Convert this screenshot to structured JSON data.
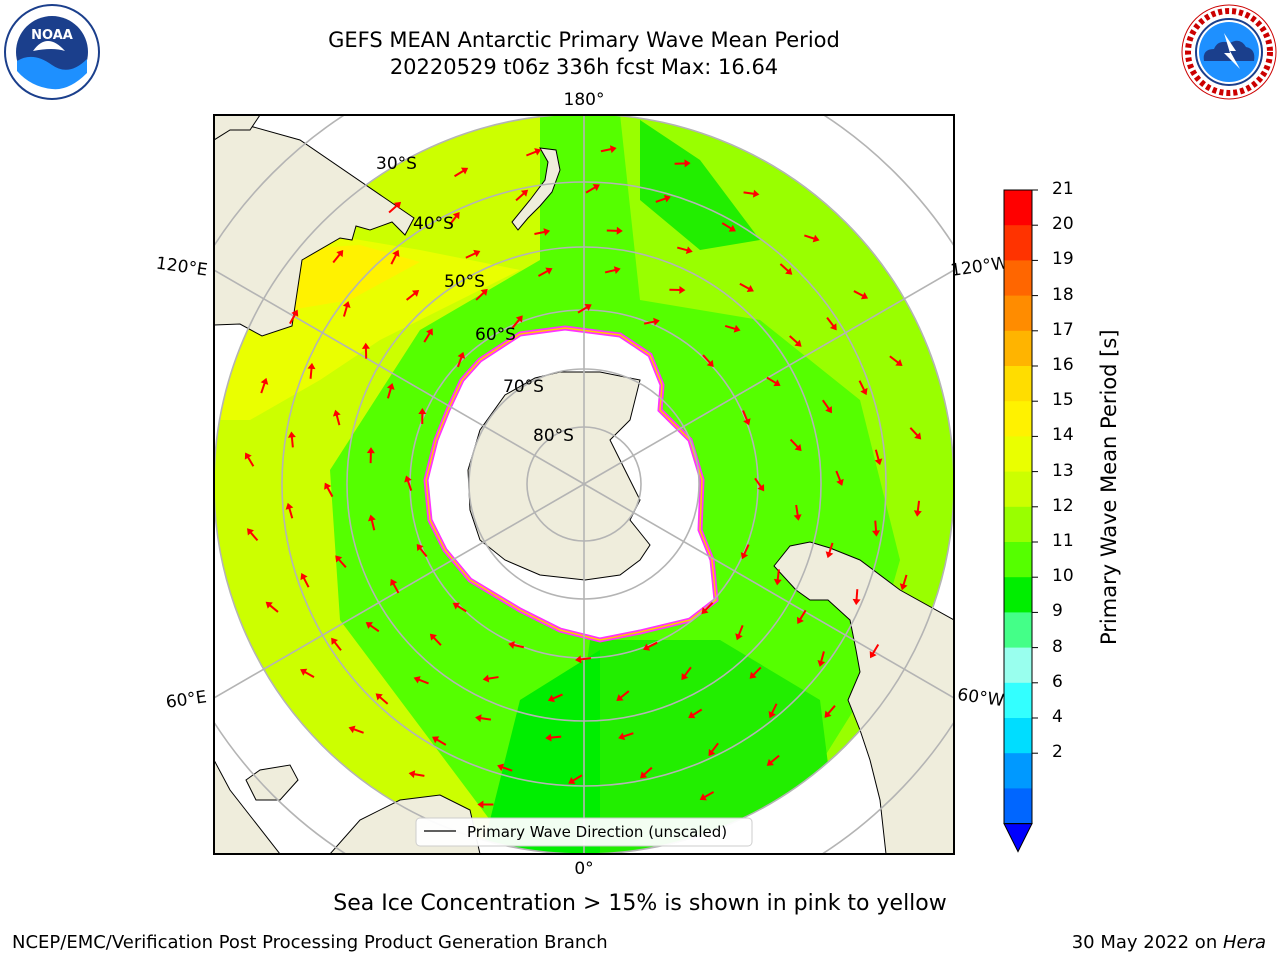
{
  "title_line1": "GEFS MEAN Antarctic Primary Wave Mean Period",
  "title_line2": "20220529 t06z 336h fcst   Max: 16.64",
  "caption": "Sea Ice Concentration > 15% is shown in pink to yellow",
  "footer_left": "NCEP/EMC/Verification Post Processing Product Generation Branch",
  "footer_right_date": "30 May 2022 on ",
  "footer_right_machine": "Hera",
  "logos": {
    "left_text": "NOAA",
    "right_text": "NATIONAL WEATHER SERVICE"
  },
  "map": {
    "projection": "south-polar-stereographic",
    "longitude_labels": [
      "180°",
      "120°E",
      "120°W",
      "60°E",
      "60°W",
      "0°"
    ],
    "latitude_labels": [
      "30°S",
      "40°S",
      "50°S",
      "60°S",
      "70°S",
      "80°S"
    ],
    "legend_label": "Primary Wave Direction (unscaled)",
    "colors": {
      "land": "#efeddc",
      "sea_ice": "#ffffff",
      "ice_edge": "#ff33ff",
      "arrows": "#ff0000"
    }
  },
  "colorbar": {
    "label": "Primary Wave Mean Period [s]",
    "ticks": [
      "21",
      "20",
      "19",
      "18",
      "17",
      "16",
      "15",
      "14",
      "13",
      "12",
      "11",
      "10",
      "9",
      "8",
      "6",
      "4",
      "2"
    ],
    "colors": [
      "#ff0000",
      "#ff3300",
      "#ff6600",
      "#ff8c00",
      "#ffb400",
      "#ffdd00",
      "#fff200",
      "#eaff00",
      "#ccff00",
      "#99ff00",
      "#55ff00",
      "#00ee00",
      "#44ff88",
      "#99ffee",
      "#33ffff",
      "#00ddff",
      "#0099ff",
      "#0066ff"
    ],
    "extend_color": "#0000ff"
  }
}
